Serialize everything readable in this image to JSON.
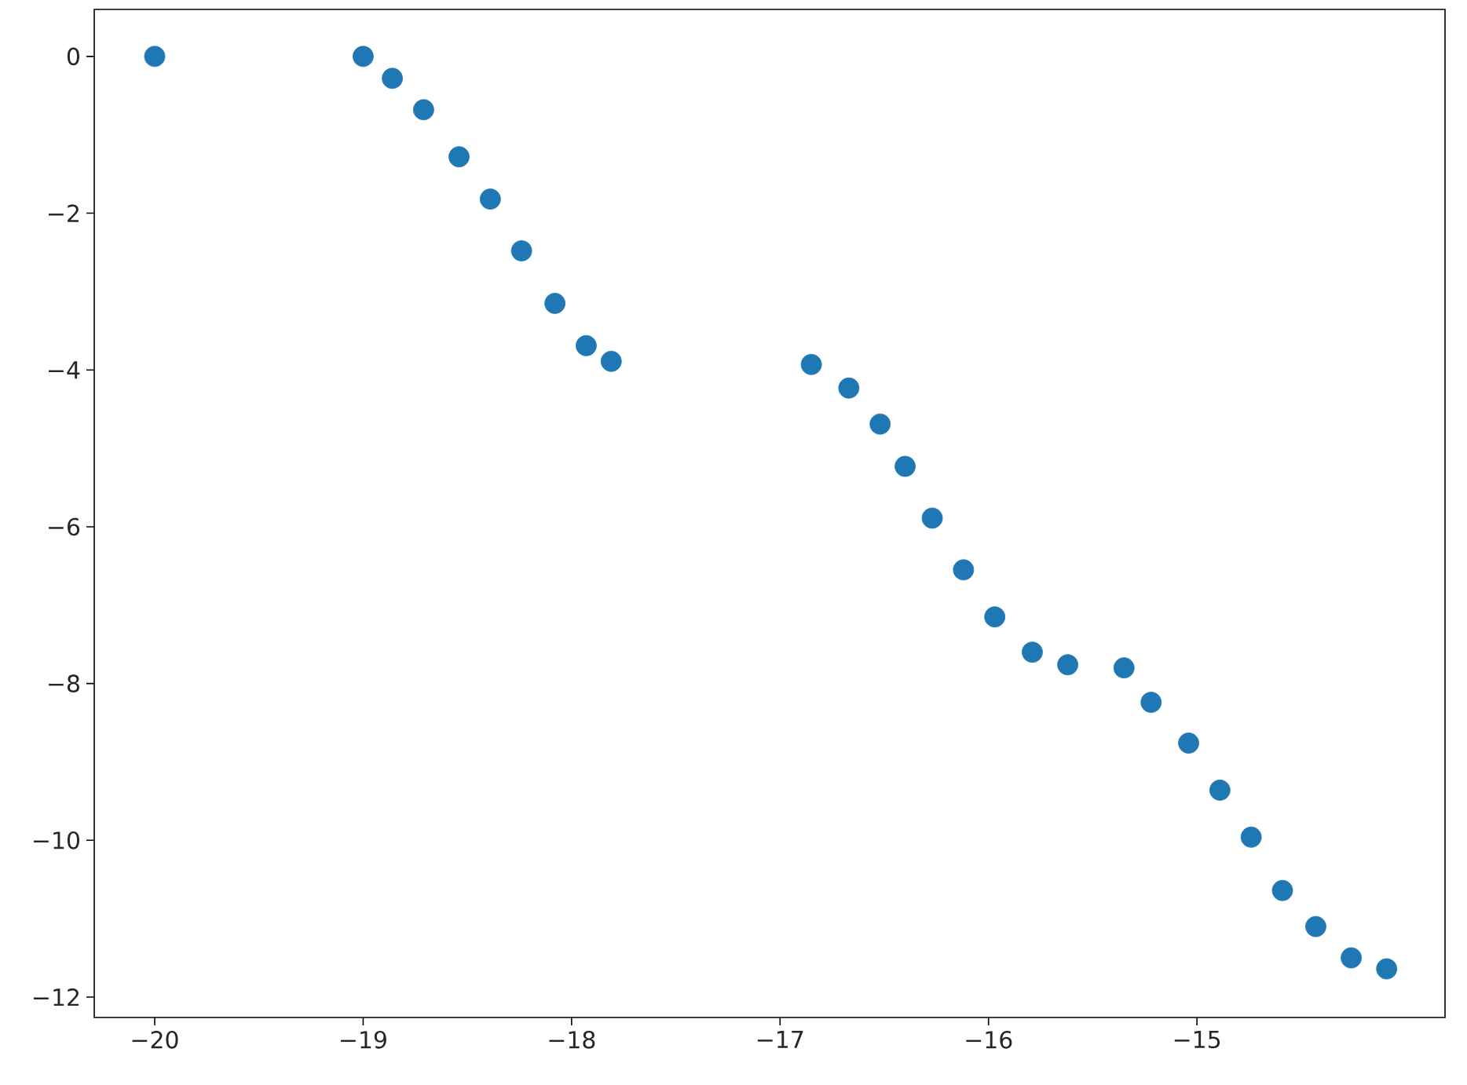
{
  "chart_data": {
    "type": "scatter",
    "marker": "circle",
    "xlim": [
      -20.29,
      -13.81
    ],
    "ylim": [
      -12.26,
      0.6
    ],
    "xticks": [
      {
        "value": -20,
        "label": "−20"
      },
      {
        "value": -19,
        "label": "−19"
      },
      {
        "value": -18,
        "label": "−18"
      },
      {
        "value": -17,
        "label": "−17"
      },
      {
        "value": -16,
        "label": "−16"
      },
      {
        "value": -15,
        "label": "−15"
      }
    ],
    "yticks": [
      {
        "value": 0,
        "label": "0"
      },
      {
        "value": -2,
        "label": "−2"
      },
      {
        "value": -4,
        "label": "−4"
      },
      {
        "value": -6,
        "label": "−6"
      },
      {
        "value": -8,
        "label": "−8"
      },
      {
        "value": -10,
        "label": "−10"
      },
      {
        "value": -12,
        "label": "−12"
      }
    ],
    "series": [
      {
        "color": "#1f77b4",
        "x": [
          -20,
          -19.0,
          -18.86,
          -18.71,
          -18.54,
          -18.39,
          -18.24,
          -18.08,
          -17.93,
          -17.81,
          -16.85,
          -16.67,
          -16.52,
          -16.4,
          -16.27,
          -16.12,
          -15.97,
          -15.79,
          -15.62,
          -15.35,
          -15.22,
          -15.04,
          -14.89,
          -14.74,
          -14.59,
          -14.43,
          -14.26,
          -14.09
        ],
        "values": [
          0,
          0,
          -0.28,
          -0.68,
          -1.28,
          -1.82,
          -2.48,
          -3.15,
          -3.69,
          -3.89,
          -3.93,
          -4.23,
          -4.69,
          -5.23,
          -5.89,
          -6.55,
          -7.15,
          -7.6,
          -7.76,
          -7.8,
          -8.24,
          -8.76,
          -9.36,
          -9.96,
          -10.64,
          -11.1,
          -11.5,
          -11.64
        ]
      }
    ]
  }
}
